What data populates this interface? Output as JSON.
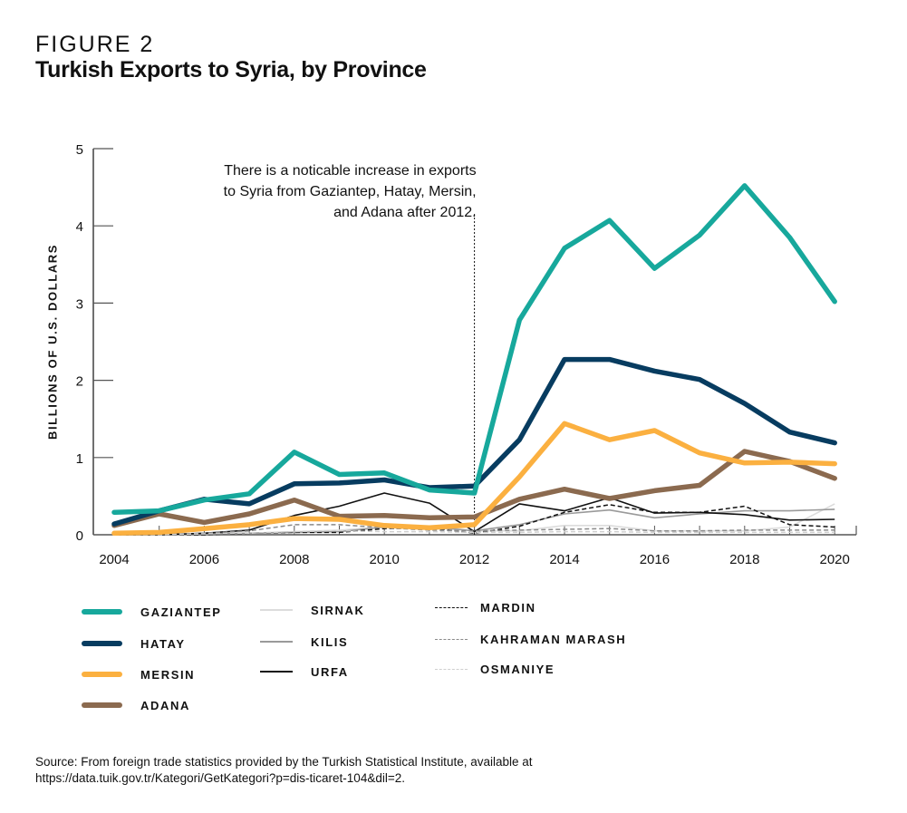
{
  "figure_label": "FIGURE 2",
  "chart_data": {
    "type": "line",
    "title": "Turkish Exports to Syria, by Province",
    "xlabel": "",
    "ylabel": "BILLIONS OF U.S. DOLLARS",
    "ylim": [
      0,
      5
    ],
    "xlim": [
      2004,
      2020
    ],
    "yticks": [
      0,
      1,
      2,
      3,
      4,
      5
    ],
    "xtick_labels": [
      "2004",
      "2006",
      "2008",
      "2010",
      "2012",
      "2014",
      "2016",
      "2018",
      "2020"
    ],
    "x": [
      2004,
      2005,
      2006,
      2007,
      2008,
      2009,
      2010,
      2011,
      2012,
      2013,
      2014,
      2015,
      2016,
      2017,
      2018,
      2019,
      2020
    ],
    "grid": false,
    "legend_position": "bottom",
    "annotation": {
      "x": 2012,
      "lines": [
        "There is a noticable increase in exports",
        "to Syria from Gaziantep, Hatay, Mersin,",
        "and Adana after 2012."
      ]
    },
    "series": [
      {
        "name": "GAZIANTEP",
        "color": "#17a89c",
        "style": "thick",
        "values": [
          0.29,
          0.31,
          0.45,
          0.53,
          1.07,
          0.78,
          0.8,
          0.58,
          0.54,
          2.78,
          3.71,
          4.07,
          3.45,
          3.88,
          4.52,
          3.85,
          3.02
        ]
      },
      {
        "name": "HATAY",
        "color": "#073c60",
        "style": "thick",
        "values": [
          0.14,
          0.31,
          0.46,
          0.4,
          0.66,
          0.67,
          0.71,
          0.61,
          0.63,
          1.23,
          2.27,
          2.27,
          2.12,
          2.01,
          1.7,
          1.33,
          1.19
        ]
      },
      {
        "name": "MERSIN",
        "color": "#fbb040",
        "style": "thick",
        "values": [
          0.02,
          0.03,
          0.08,
          0.13,
          0.21,
          0.2,
          0.12,
          0.09,
          0.13,
          0.75,
          1.44,
          1.23,
          1.35,
          1.06,
          0.93,
          0.94,
          0.92
        ]
      },
      {
        "name": "ADANA",
        "color": "#8b6a4f",
        "style": "thick",
        "values": [
          0.12,
          0.27,
          0.16,
          0.27,
          0.45,
          0.24,
          0.25,
          0.22,
          0.23,
          0.46,
          0.59,
          0.47,
          0.57,
          0.64,
          1.08,
          0.95,
          0.73
        ]
      },
      {
        "name": "SIRNAK",
        "color": "#dcdcdc",
        "style": "thin",
        "values": [
          0.0,
          0.0,
          0.01,
          0.02,
          0.04,
          0.06,
          0.1,
          0.11,
          0.05,
          0.05,
          0.12,
          0.12,
          0.05,
          0.05,
          0.05,
          0.1,
          0.4
        ]
      },
      {
        "name": "KILIS",
        "color": "#9a9a9a",
        "style": "thin",
        "values": [
          0.0,
          0.0,
          0.01,
          0.02,
          0.03,
          0.04,
          0.1,
          0.1,
          0.05,
          0.13,
          0.27,
          0.32,
          0.22,
          0.27,
          0.31,
          0.31,
          0.33
        ]
      },
      {
        "name": "URFA",
        "color": "#111111",
        "style": "thin",
        "values": [
          0.0,
          0.0,
          0.02,
          0.06,
          0.25,
          0.37,
          0.54,
          0.41,
          0.04,
          0.4,
          0.31,
          0.48,
          0.28,
          0.29,
          0.26,
          0.19,
          0.2
        ]
      },
      {
        "name": "MARDIN",
        "color": "#111111",
        "style": "dashed",
        "values": [
          0.0,
          0.0,
          0.0,
          0.02,
          0.03,
          0.03,
          0.08,
          0.09,
          0.02,
          0.11,
          0.29,
          0.39,
          0.29,
          0.29,
          0.37,
          0.13,
          0.1
        ]
      },
      {
        "name": "KAHRAMAN MARASH",
        "color": "#8a8a8a",
        "style": "dashed",
        "values": [
          0.0,
          0.0,
          0.02,
          0.05,
          0.13,
          0.13,
          0.09,
          0.06,
          0.05,
          0.06,
          0.07,
          0.08,
          0.05,
          0.05,
          0.06,
          0.06,
          0.06
        ]
      },
      {
        "name": "OSMANIYE",
        "color": "#cfcfcf",
        "style": "dashed",
        "values": [
          0.0,
          0.0,
          0.01,
          0.02,
          0.04,
          0.05,
          0.04,
          0.04,
          0.03,
          0.03,
          0.04,
          0.04,
          0.03,
          0.03,
          0.03,
          0.03,
          0.03
        ]
      }
    ]
  },
  "source": {
    "line1": "Source: From foreign trade statistics provided by the Turkish Statistical Institute, available at",
    "line2": "https://data.tuik.gov.tr/Kategori/GetKategori?p=dis-ticaret-104&dil=2."
  }
}
